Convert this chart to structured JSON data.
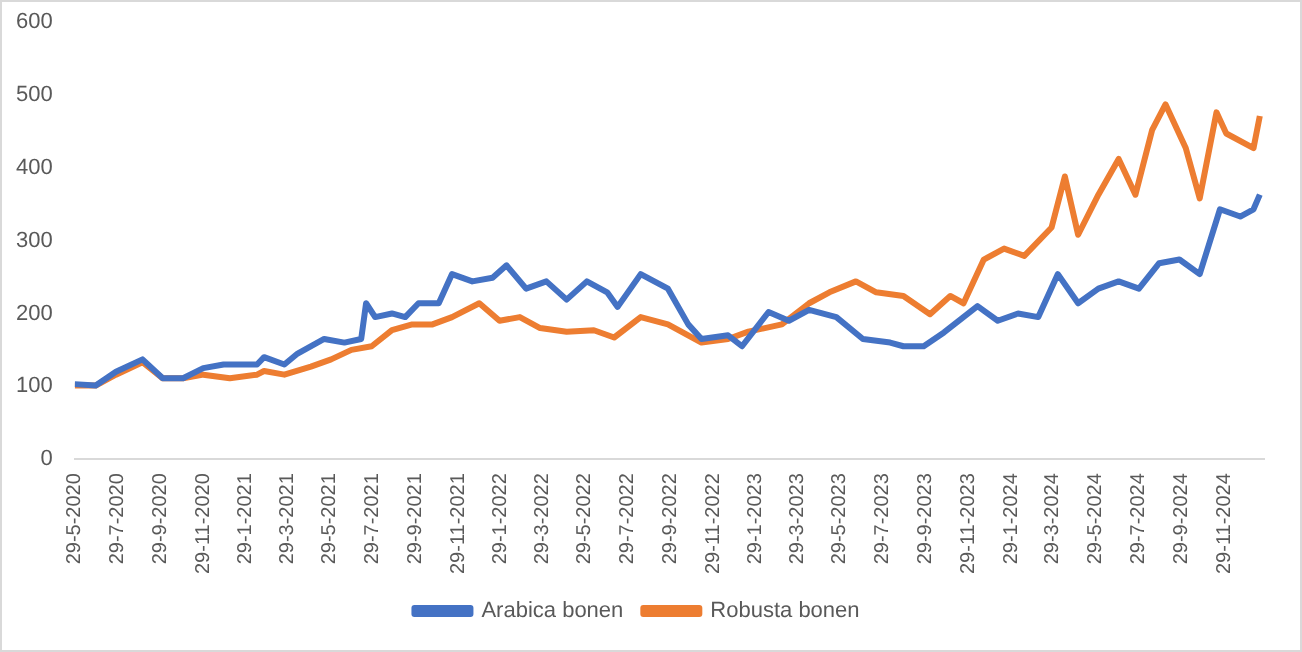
{
  "chart_data": {
    "type": "line",
    "x": [
      "2020-05-29",
      "2020-06-28",
      "2020-07-27",
      "2020-09-03",
      "2020-10-02",
      "2020-10-31",
      "2020-11-29",
      "2020-12-28",
      "2021-01-06",
      "2021-02-14",
      "2021-02-24",
      "2021-03-25",
      "2021-04-13",
      "2021-05-02",
      "2021-05-21",
      "2021-05-31",
      "2021-06-19",
      "2021-06-29",
      "2021-07-13",
      "2021-07-20",
      "2021-07-28",
      "2021-08-02",
      "2021-08-26",
      "2021-09-14",
      "2021-09-24",
      "2021-10-03",
      "2021-10-23",
      "2021-11-01",
      "2021-11-20",
      "2021-12-19",
      "2021-12-29",
      "2022-01-17",
      "2022-01-27",
      "2022-02-06",
      "2022-02-25",
      "2022-03-06",
      "2022-03-26",
      "2022-04-04",
      "2022-05-03",
      "2022-06-01",
      "2022-06-11",
      "2022-06-30",
      "2022-07-10",
      "2022-07-15",
      "2022-08-17",
      "2022-09-25",
      "2022-10-24",
      "2022-11-12",
      "2022-12-20",
      "2023-01-09",
      "2023-01-18",
      "2023-02-16",
      "2023-03-07",
      "2023-03-17",
      "2023-04-15",
      "2023-05-14",
      "2023-05-24",
      "2023-06-21",
      "2023-07-01",
      "2023-07-20",
      "2023-08-09",
      "2023-08-28",
      "2023-09-26",
      "2023-10-05",
      "2023-10-25",
      "2023-11-03",
      "2023-11-22",
      "2023-12-12",
      "2023-12-21",
      "2024-01-10",
      "2024-01-19",
      "2024-02-08",
      "2024-02-17",
      "2024-03-08",
      "2024-03-27",
      "2024-04-05",
      "2024-04-15",
      "2024-05-04",
      "2024-06-02",
      "2024-07-01",
      "2024-07-25",
      "2024-07-30",
      "2024-08-18",
      "2024-08-28",
      "2024-09-06",
      "2024-09-26",
      "2024-10-05",
      "2024-10-25",
      "2024-11-18",
      "2024-11-23",
      "2024-12-02",
      "2024-12-22",
      "2025-01-10",
      "2025-01-19"
    ],
    "series": [
      {
        "name": "Arabica bonen",
        "color": "#4472c4",
        "values": [
          103,
          101,
          120,
          137,
          111,
          111,
          125,
          130,
          null,
          130,
          140,
          130,
          145,
          null,
          165,
          null,
          160,
          null,
          165,
          214,
          null,
          195,
          200,
          195,
          null,
          214,
          null,
          214,
          254,
          244,
          null,
          249,
          null,
          266,
          null,
          234,
          null,
          244,
          219,
          244,
          null,
          229,
          null,
          209,
          254,
          234,
          185,
          165,
          170,
          155,
          null,
          202,
          null,
          190,
          205,
          null,
          195,
          null,
          165,
          null,
          160,
          155,
          155,
          null,
          174,
          null,
          null,
          210,
          null,
          190,
          null,
          200,
          null,
          195,
          null,
          254,
          null,
          214,
          234,
          244,
          null,
          234,
          null,
          269,
          null,
          274,
          null,
          254,
          null,
          343,
          null,
          333,
          343,
          363
        ]
      },
      {
        "name": "Robusta bonen",
        "color": "#ed7d31",
        "values": [
          101,
          101,
          116,
          133,
          111,
          111,
          116,
          null,
          111,
          116,
          121,
          116,
          null,
          127,
          null,
          137,
          null,
          150,
          null,
          null,
          155,
          null,
          177,
          null,
          185,
          null,
          185,
          null,
          195,
          null,
          214,
          null,
          190,
          null,
          195,
          null,
          180,
          null,
          175,
          null,
          177,
          null,
          167,
          null,
          195,
          185,
          null,
          160,
          165,
          null,
          175,
          null,
          185,
          null,
          214,
          229,
          null,
          244,
          null,
          229,
          null,
          224,
          null,
          199,
          null,
          224,
          214,
          null,
          274,
          null,
          289,
          null,
          279,
          null,
          318,
          null,
          388,
          308,
          363,
          412,
          363,
          null,
          452,
          null,
          487,
          null,
          427,
          358,
          476,
          null,
          447,
          null,
          427,
          471
        ]
      }
    ],
    "xlim": [
      "2020-05-29",
      "2025-01-25"
    ],
    "xticks": [
      {
        "value": "2020-05-29",
        "label": "29-5-2020"
      },
      {
        "value": "2020-07-29",
        "label": "29-7-2020"
      },
      {
        "value": "2020-09-29",
        "label": "29-9-2020"
      },
      {
        "value": "2020-11-29",
        "label": "29-11-2020"
      },
      {
        "value": "2021-01-29",
        "label": "29-1-2021"
      },
      {
        "value": "2021-03-29",
        "label": "29-3-2021"
      },
      {
        "value": "2021-05-29",
        "label": "29-5-2021"
      },
      {
        "value": "2021-07-29",
        "label": "29-7-2021"
      },
      {
        "value": "2021-09-29",
        "label": "29-9-2021"
      },
      {
        "value": "2021-11-29",
        "label": "29-11-2021"
      },
      {
        "value": "2022-01-29",
        "label": "29-1-2022"
      },
      {
        "value": "2022-03-29",
        "label": "29-3-2022"
      },
      {
        "value": "2022-05-29",
        "label": "29-5-2022"
      },
      {
        "value": "2022-07-29",
        "label": "29-7-2022"
      },
      {
        "value": "2022-09-29",
        "label": "29-9-2022"
      },
      {
        "value": "2022-11-29",
        "label": "29-11-2022"
      },
      {
        "value": "2023-01-29",
        "label": "29-1-2023"
      },
      {
        "value": "2023-03-29",
        "label": "29-3-2023"
      },
      {
        "value": "2023-05-29",
        "label": "29-5-2023"
      },
      {
        "value": "2023-07-29",
        "label": "29-7-2023"
      },
      {
        "value": "2023-09-29",
        "label": "29-9-2023"
      },
      {
        "value": "2023-11-29",
        "label": "29-11-2023"
      },
      {
        "value": "2024-01-29",
        "label": "29-1-2024"
      },
      {
        "value": "2024-03-29",
        "label": "29-3-2024"
      },
      {
        "value": "2024-05-29",
        "label": "29-5-2024"
      },
      {
        "value": "2024-07-29",
        "label": "29-7-2024"
      },
      {
        "value": "2024-09-29",
        "label": "29-9-2024"
      },
      {
        "value": "2024-11-29",
        "label": "29-11-2024"
      }
    ],
    "ylim": [
      0,
      600
    ],
    "yticks": [
      0,
      100,
      200,
      300,
      400,
      500,
      600
    ],
    "grid": false,
    "legend": "bottom"
  }
}
